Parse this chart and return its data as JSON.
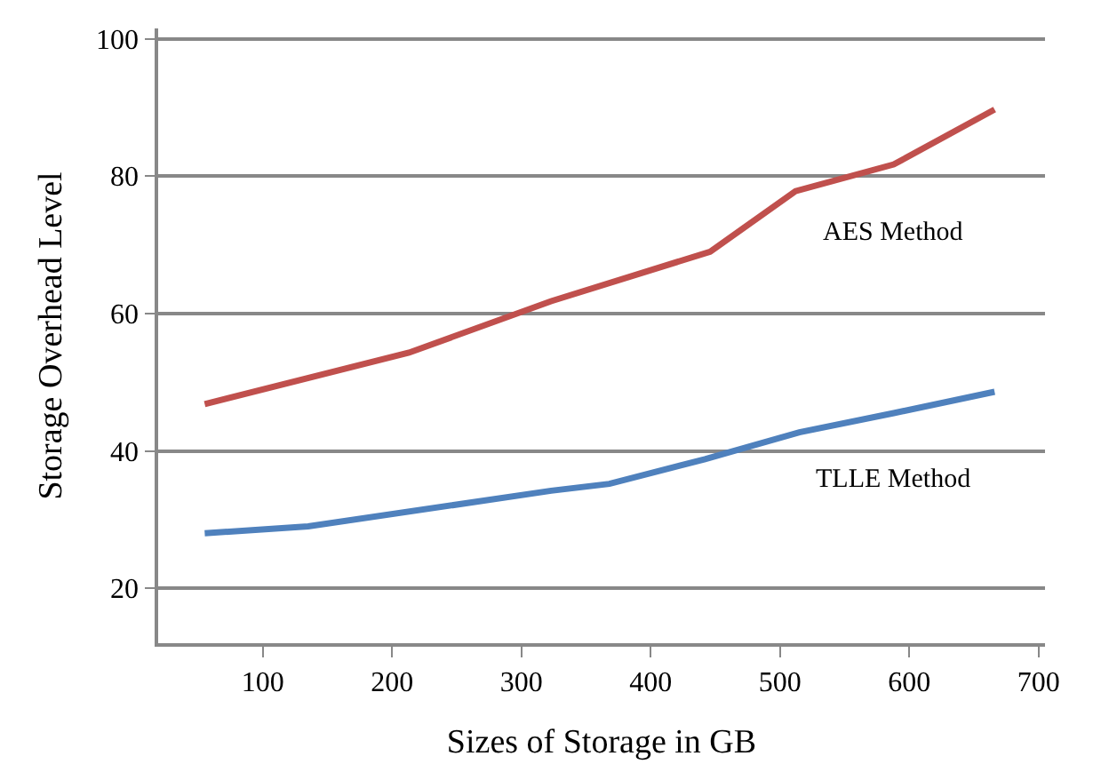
{
  "chart_data": {
    "type": "line",
    "xlabel": "Sizes of Storage in GB",
    "ylabel": "Storage Overhead Level",
    "xlim": [
      19,
      705
    ],
    "xticks": [
      100,
      200,
      300,
      400,
      500,
      600,
      700
    ],
    "ylim": [
      12,
      101.5
    ],
    "yticks": [
      20,
      40,
      60,
      80,
      100
    ],
    "grid": "y",
    "legend": false,
    "marker": "none",
    "line_style": "solid",
    "series": [
      {
        "name": "AES Method",
        "color": "#c0504d",
        "x": [
          55,
          213,
          323,
          446,
          512,
          588,
          666
        ],
        "values": [
          46.8,
          54.3,
          61.8,
          69.0,
          77.8,
          81.7,
          89.7
        ]
      },
      {
        "name": "TLLE Method",
        "color": "#4f81bd",
        "x": [
          55,
          135,
          323,
          368,
          442,
          515,
          588,
          666
        ],
        "values": [
          28.0,
          29.0,
          34.2,
          35.2,
          38.8,
          42.7,
          45.5,
          48.6
        ]
      }
    ]
  }
}
